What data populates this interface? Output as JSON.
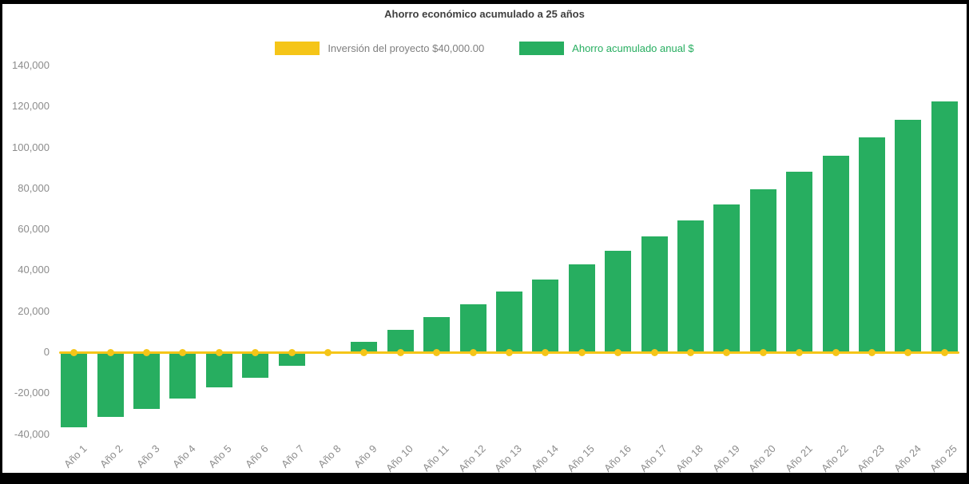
{
  "frame": {
    "background": "#000000",
    "panel_background": "#ffffff"
  },
  "chart_data": {
    "type": "bar",
    "title": "Ahorro económico acumulado a 25 años",
    "categories": [
      "Año 1",
      "Año 2",
      "Año 3",
      "Año 4",
      "Año 5",
      "Año 6",
      "Año 7",
      "Año 8",
      "Año 9",
      "Año 10",
      "Año 11",
      "Año 12",
      "Año 13",
      "Año 14",
      "Año 15",
      "Año 16",
      "Año 17",
      "Año 18",
      "Año 19",
      "Año 20",
      "Año 21",
      "Año 22",
      "Año 23",
      "Año 24",
      "Año 25"
    ],
    "series": [
      {
        "name": "Inversión del proyecto $40,000.00",
        "type": "line",
        "color": "#F5C518",
        "values": [
          0,
          0,
          0,
          0,
          0,
          0,
          0,
          0,
          0,
          0,
          0,
          0,
          0,
          0,
          0,
          0,
          0,
          0,
          0,
          0,
          0,
          0,
          0,
          0,
          0
        ]
      },
      {
        "name": "Ahorro acumulado anual $",
        "type": "bar",
        "color": "#27AE60",
        "values": [
          -36500,
          -31500,
          -27500,
          -22500,
          -17000,
          -12500,
          -6500,
          0,
          5000,
          11000,
          17000,
          23500,
          29500,
          35500,
          43000,
          49500,
          56500,
          64500,
          72000,
          79500,
          88000,
          96000,
          105000,
          113500,
          122500
        ]
      }
    ],
    "y_axis": {
      "min": -40000,
      "max": 140000,
      "tick_interval": 20000,
      "tick_labels": [
        "140,000",
        "120,000",
        "100,000",
        "80,000",
        "60,000",
        "40,000",
        "20,000",
        "0",
        "-20,000",
        "-40,000"
      ],
      "tick_values": [
        140000,
        120000,
        100000,
        80000,
        60000,
        40000,
        20000,
        0,
        -20000,
        -40000
      ]
    },
    "x_axis": {
      "label_rotation": -45
    },
    "legend_position": "top",
    "grid": false,
    "text_colors": {
      "title": "#3F3F3F",
      "axis_labels": "#8C8C8C",
      "legend_investment": "#7F7F7F",
      "legend_savings": "#27AE60"
    }
  }
}
